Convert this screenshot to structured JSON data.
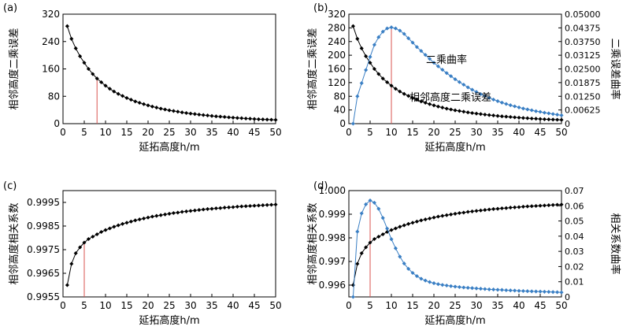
{
  "chart_data": [
    {
      "panel_label": "(a)",
      "type": "scatter",
      "xlabel": "延拓高度h/m",
      "ylabel": "相邻高度二乘误差",
      "xlim": [
        0,
        50
      ],
      "ylim": [
        0,
        320
      ],
      "xticks": [
        "0",
        "5",
        "10",
        "15",
        "20",
        "25",
        "30",
        "35",
        "40",
        "45",
        "50"
      ],
      "yticks": [
        "0",
        "80",
        "160",
        "240",
        "320"
      ],
      "x": [
        1,
        2,
        3,
        4,
        5,
        6,
        7,
        8,
        9,
        10,
        11,
        12,
        13,
        14,
        15,
        16,
        17,
        18,
        19,
        20,
        21,
        22,
        23,
        24,
        25,
        26,
        27,
        28,
        29,
        30,
        31,
        32,
        33,
        34,
        35,
        36,
        37,
        38,
        39,
        40,
        41,
        42,
        43,
        44,
        45,
        46,
        47,
        48,
        49,
        50
      ],
      "series": [
        {
          "values": [
            285,
            248,
            220,
            197,
            178,
            160,
            145,
            132,
            121,
            111,
            102,
            94,
            87,
            81,
            75,
            70,
            65,
            61,
            57,
            53.5,
            50,
            47,
            44,
            41.5,
            39,
            37,
            35,
            33,
            31,
            29.5,
            28,
            26.5,
            25,
            24,
            22.5,
            21.5,
            20.5,
            19.5,
            18.5,
            17.5,
            16.5,
            16,
            15,
            14.5,
            13.5,
            13,
            12.5,
            12,
            11.5,
            11
          ],
          "color": "#000000"
        }
      ],
      "marker_x": 8,
      "marker_color": "#d9534f"
    },
    {
      "panel_label": "(b)",
      "type": "line",
      "xlabel": "延拓高度h/m",
      "ylabel": "相邻高度二乘误差",
      "y2label": "二乘误差曲率",
      "xlim": [
        0,
        50
      ],
      "ylim": [
        0,
        320
      ],
      "y2lim": [
        0,
        0.05
      ],
      "xticks": [
        "0",
        "5",
        "10",
        "15",
        "20",
        "25",
        "30",
        "35",
        "40",
        "45",
        "50"
      ],
      "yticks": [
        "0",
        "40",
        "80",
        "120",
        "160",
        "200",
        "240",
        "280",
        "320"
      ],
      "y2ticks": [
        "0",
        "0.00625",
        "0.01250",
        "0.01875",
        "0.02500",
        "0.03125",
        "0.03750",
        "0.04375",
        "0.05000"
      ],
      "x": [
        1,
        2,
        3,
        4,
        5,
        6,
        7,
        8,
        9,
        10,
        11,
        12,
        13,
        14,
        15,
        16,
        17,
        18,
        19,
        20,
        21,
        22,
        23,
        24,
        25,
        26,
        27,
        28,
        29,
        30,
        31,
        32,
        33,
        34,
        35,
        36,
        37,
        38,
        39,
        40,
        41,
        42,
        43,
        44,
        45,
        46,
        47,
        48,
        49,
        50
      ],
      "series": [
        {
          "name": "相邻高度二乘误差",
          "axis": "left",
          "color": "#000000",
          "values": [
            285,
            248,
            220,
            197,
            178,
            160,
            145,
            132,
            121,
            111,
            102,
            94,
            87,
            81,
            75,
            70,
            65,
            61,
            57,
            53.5,
            50,
            47,
            44,
            41.5,
            39,
            37,
            35,
            33,
            31,
            29.5,
            28,
            26.5,
            25,
            24,
            22.5,
            21.5,
            20.5,
            19.5,
            18.5,
            17.5,
            16.5,
            16,
            15,
            14.5,
            13.5,
            13,
            12.5,
            12,
            11.5,
            11
          ]
        },
        {
          "name": "二乘曲率",
          "axis": "right",
          "color": "#3a7fc4",
          "values": [
            0.0,
            0.0125,
            0.0185,
            0.0245,
            0.0305,
            0.036,
            0.0395,
            0.042,
            0.0435,
            0.044,
            0.0435,
            0.0425,
            0.041,
            0.039,
            0.037,
            0.035,
            0.0332,
            0.0314,
            0.0296,
            0.0278,
            0.0262,
            0.0246,
            0.0231,
            0.0217,
            0.0203,
            0.019,
            0.0178,
            0.0166,
            0.0155,
            0.0145,
            0.0135,
            0.0126,
            0.0118,
            0.011,
            0.0103,
            0.0096,
            0.009,
            0.0084,
            0.0079,
            0.0074,
            0.0069,
            0.0065,
            0.0061,
            0.0057,
            0.0054,
            0.005,
            0.0047,
            0.0044,
            0.0041,
            0.0038
          ]
        }
      ],
      "marker_x": 10,
      "marker_color": "#d9534f"
    },
    {
      "panel_label": "(c)",
      "type": "scatter",
      "xlabel": "延拓高度h/m",
      "ylabel": "相邻高度相关系数",
      "xlim": [
        0,
        50
      ],
      "ylim": [
        0.9955,
        1.0
      ],
      "xticks": [
        "0",
        "5",
        "10",
        "15",
        "20",
        "25",
        "30",
        "35",
        "40",
        "45",
        "50"
      ],
      "yticks": [
        "0.9955",
        "0.9965",
        "0.9975",
        "0.9985",
        "0.9995"
      ],
      "x": [
        1,
        2,
        3,
        4,
        5,
        6,
        7,
        8,
        9,
        10,
        11,
        12,
        13,
        14,
        15,
        16,
        17,
        18,
        19,
        20,
        21,
        22,
        23,
        24,
        25,
        26,
        27,
        28,
        29,
        30,
        31,
        32,
        33,
        34,
        35,
        36,
        37,
        38,
        39,
        40,
        41,
        42,
        43,
        44,
        45,
        46,
        47,
        48,
        49,
        50
      ],
      "series": [
        {
          "color": "#000000",
          "values": [
            0.996,
            0.9969,
            0.99735,
            0.9976,
            0.9978,
            0.99795,
            0.99805,
            0.99815,
            0.99825,
            0.99833,
            0.9984,
            0.99847,
            0.99853,
            0.99859,
            0.99864,
            0.99869,
            0.99874,
            0.99878,
            0.99882,
            0.99886,
            0.9989,
            0.99893,
            0.99896,
            0.99899,
            0.99902,
            0.99905,
            0.99907,
            0.9991,
            0.99912,
            0.99914,
            0.99916,
            0.99918,
            0.9992,
            0.99922,
            0.99923,
            0.99925,
            0.99926,
            0.99928,
            0.99929,
            0.9993,
            0.99932,
            0.99933,
            0.99934,
            0.99935,
            0.99936,
            0.99937,
            0.99938,
            0.99939,
            0.9994,
            0.99941
          ]
        }
      ],
      "marker_x": 5,
      "marker_color": "#d9534f"
    },
    {
      "panel_label": "(d)",
      "type": "line",
      "xlabel": "延拓高度h/m",
      "ylabel": "相邻高度相关系数",
      "y2label": "相关系数曲率",
      "xlim": [
        0,
        50
      ],
      "ylim": [
        0.9955,
        1.0
      ],
      "y2lim": [
        0,
        0.07
      ],
      "xticks": [
        "0",
        "5",
        "10",
        "15",
        "20",
        "25",
        "30",
        "35",
        "40",
        "45",
        "50"
      ],
      "yticks": [
        "0.996",
        "0.997",
        "0.998",
        "0.999",
        "1.000"
      ],
      "y2ticks": [
        "0",
        "0.01",
        "0.02",
        "0.03",
        "0.04",
        "0.05",
        "0.06",
        "0.07"
      ],
      "x": [
        1,
        2,
        3,
        4,
        5,
        6,
        7,
        8,
        9,
        10,
        11,
        12,
        13,
        14,
        15,
        16,
        17,
        18,
        19,
        20,
        21,
        22,
        23,
        24,
        25,
        26,
        27,
        28,
        29,
        30,
        31,
        32,
        33,
        34,
        35,
        36,
        37,
        38,
        39,
        40,
        41,
        42,
        43,
        44,
        45,
        46,
        47,
        48,
        49,
        50
      ],
      "series": [
        {
          "name": "相邻高度相关系数",
          "axis": "left",
          "color": "#000000",
          "values": [
            0.996,
            0.9969,
            0.99735,
            0.9976,
            0.9978,
            0.99795,
            0.99805,
            0.99815,
            0.99825,
            0.99833,
            0.9984,
            0.99847,
            0.99853,
            0.99859,
            0.99864,
            0.99869,
            0.99874,
            0.99878,
            0.99882,
            0.99886,
            0.9989,
            0.99893,
            0.99896,
            0.99899,
            0.99902,
            0.99905,
            0.99907,
            0.9991,
            0.99912,
            0.99914,
            0.99916,
            0.99918,
            0.9992,
            0.99922,
            0.99923,
            0.99925,
            0.99926,
            0.99928,
            0.99929,
            0.9993,
            0.99932,
            0.99933,
            0.99934,
            0.99935,
            0.99936,
            0.99937,
            0.99938,
            0.99939,
            0.9994,
            0.99941
          ]
        },
        {
          "name": "相关系数曲率",
          "axis": "right",
          "color": "#3a7fc4",
          "values": [
            0.0,
            0.043,
            0.055,
            0.061,
            0.0635,
            0.062,
            0.058,
            0.052,
            0.045,
            0.038,
            0.032,
            0.0265,
            0.022,
            0.0185,
            0.0158,
            0.0137,
            0.012,
            0.0108,
            0.0098,
            0.009,
            0.0084,
            0.0079,
            0.0075,
            0.0071,
            0.0068,
            0.0065,
            0.0062,
            0.006,
            0.0058,
            0.0056,
            0.0054,
            0.0052,
            0.005,
            0.0049,
            0.0047,
            0.0046,
            0.0044,
            0.0043,
            0.0042,
            0.004,
            0.0039,
            0.0038,
            0.0037,
            0.0036,
            0.0035,
            0.0034,
            0.0033,
            0.0032,
            0.0031,
            0.003
          ]
        }
      ],
      "marker_x": 5,
      "marker_color": "#d9534f"
    }
  ]
}
